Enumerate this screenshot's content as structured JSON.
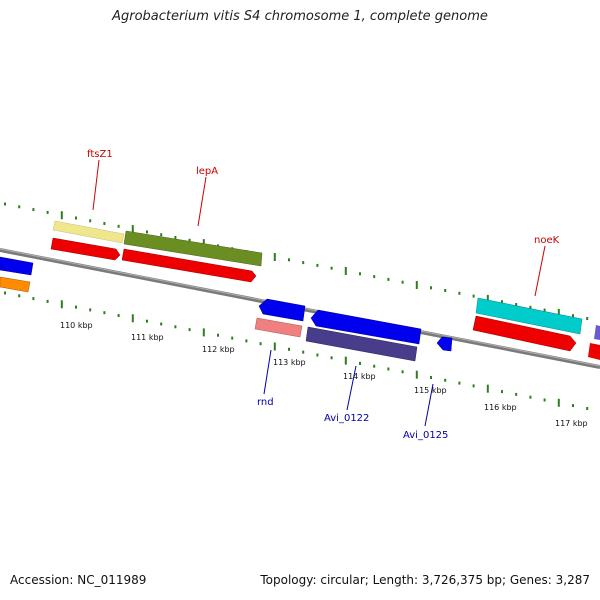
{
  "title": "Agrobacterium vitis S4 chromosome 1, complete genome",
  "footer": {
    "accession": "Accession: NC_011989",
    "stats": "Topology: circular; Length: 3,726,375 bp; Genes: 3,287"
  },
  "scale": {
    "unit": "kbp",
    "labels": [
      "110 kbp",
      "111 kbp",
      "112 kbp",
      "113 kbp",
      "114 kbp",
      "115 kbp",
      "116 kbp",
      "117 kbp"
    ]
  },
  "colors": {
    "backbone": "#808080",
    "tick": "#2e7d1e",
    "label_top": "#cc0000",
    "label_bottom": "#0000aa"
  },
  "gene_labels": {
    "top": [
      "ftsZ1",
      "lepA",
      "noeK"
    ],
    "bottom": [
      "rnd",
      "Avi_0122",
      "Avi_0125"
    ]
  }
}
